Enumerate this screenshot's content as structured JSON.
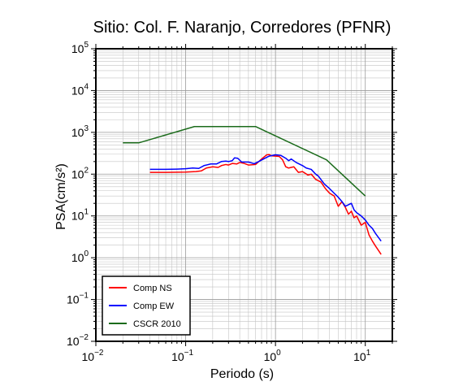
{
  "chart_data": {
    "type": "line",
    "title": "Sitio: Col. F. Naranjo, Corredores (PFNR)",
    "xlabel": "Periodo (s)",
    "ylabel": "PSA(cm/s²)",
    "xscale": "log",
    "yscale": "log",
    "xlim": [
      0.01,
      20
    ],
    "ylim": [
      0.01,
      100000
    ],
    "grid": true,
    "legend_position": "bottom-left",
    "x_tick_labels": [
      {
        "value": 0.01,
        "base": "10",
        "exp": "−2"
      },
      {
        "value": 0.1,
        "base": "10",
        "exp": "−1"
      },
      {
        "value": 1,
        "base": "10",
        "exp": "0"
      },
      {
        "value": 10,
        "base": "10",
        "exp": "1"
      }
    ],
    "y_tick_labels": [
      {
        "value": 0.01,
        "base": "10",
        "exp": "−2"
      },
      {
        "value": 0.1,
        "base": "10",
        "exp": "−1"
      },
      {
        "value": 1,
        "base": "10",
        "exp": "0"
      },
      {
        "value": 10,
        "base": "10",
        "exp": "1"
      },
      {
        "value": 100,
        "base": "10",
        "exp": "2"
      },
      {
        "value": 1000,
        "base": "10",
        "exp": "3"
      },
      {
        "value": 10000,
        "base": "10",
        "exp": "4"
      },
      {
        "value": 100000,
        "base": "10",
        "exp": "5"
      }
    ],
    "series": [
      {
        "name": "Comp NS",
        "color": "#ff0000",
        "points": [
          [
            0.04,
            110
          ],
          [
            0.06,
            110
          ],
          [
            0.1,
            112
          ],
          [
            0.13,
            115
          ],
          [
            0.15,
            120
          ],
          [
            0.17,
            140
          ],
          [
            0.2,
            150
          ],
          [
            0.23,
            145
          ],
          [
            0.25,
            160
          ],
          [
            0.28,
            170
          ],
          [
            0.3,
            165
          ],
          [
            0.33,
            180
          ],
          [
            0.37,
            175
          ],
          [
            0.4,
            190
          ],
          [
            0.45,
            180
          ],
          [
            0.5,
            165
          ],
          [
            0.6,
            170
          ],
          [
            0.7,
            230
          ],
          [
            0.8,
            290
          ],
          [
            0.85,
            295
          ],
          [
            0.9,
            275
          ],
          [
            1.0,
            270
          ],
          [
            1.1,
            265
          ],
          [
            1.2,
            220
          ],
          [
            1.3,
            150
          ],
          [
            1.4,
            140
          ],
          [
            1.6,
            150
          ],
          [
            1.8,
            110
          ],
          [
            2.0,
            115
          ],
          [
            2.3,
            95
          ],
          [
            2.5,
            100
          ],
          [
            2.8,
            75
          ],
          [
            3.2,
            65
          ],
          [
            3.6,
            45
          ],
          [
            4.0,
            35
          ],
          [
            4.5,
            30
          ],
          [
            5.0,
            17
          ],
          [
            5.5,
            22
          ],
          [
            6.0,
            16
          ],
          [
            6.5,
            11
          ],
          [
            7.0,
            13
          ],
          [
            7.5,
            9
          ],
          [
            8.0,
            10
          ],
          [
            9.0,
            6
          ],
          [
            10,
            7
          ],
          [
            11,
            3.5
          ],
          [
            12,
            2.5
          ],
          [
            13,
            1.9
          ],
          [
            14,
            1.5
          ],
          [
            15,
            1.2
          ]
        ]
      },
      {
        "name": "Comp EW",
        "color": "#0000ff",
        "points": [
          [
            0.04,
            130
          ],
          [
            0.06,
            130
          ],
          [
            0.08,
            132
          ],
          [
            0.1,
            135
          ],
          [
            0.12,
            140
          ],
          [
            0.14,
            137
          ],
          [
            0.16,
            160
          ],
          [
            0.19,
            175
          ],
          [
            0.22,
            175
          ],
          [
            0.25,
            200
          ],
          [
            0.28,
            205
          ],
          [
            0.3,
            200
          ],
          [
            0.33,
            210
          ],
          [
            0.35,
            245
          ],
          [
            0.38,
            240
          ],
          [
            0.42,
            195
          ],
          [
            0.5,
            195
          ],
          [
            0.58,
            178
          ],
          [
            0.65,
            200
          ],
          [
            0.75,
            235
          ],
          [
            0.85,
            270
          ],
          [
            1.0,
            290
          ],
          [
            1.15,
            280
          ],
          [
            1.3,
            240
          ],
          [
            1.4,
            210
          ],
          [
            1.5,
            230
          ],
          [
            1.7,
            190
          ],
          [
            2.0,
            160
          ],
          [
            2.2,
            140
          ],
          [
            2.5,
            130
          ],
          [
            2.8,
            100
          ],
          [
            3.0,
            90
          ],
          [
            3.5,
            58
          ],
          [
            4.0,
            45
          ],
          [
            4.5,
            35
          ],
          [
            5.0,
            28
          ],
          [
            5.5,
            22
          ],
          [
            6.0,
            17
          ],
          [
            7.0,
            20
          ],
          [
            7.5,
            14
          ],
          [
            8.0,
            12
          ],
          [
            9.0,
            10
          ],
          [
            10,
            8
          ],
          [
            11,
            6
          ],
          [
            12,
            5
          ],
          [
            13,
            3.8
          ],
          [
            15,
            2.5
          ]
        ]
      },
      {
        "name": "CSCR 2010",
        "color": "#1b6b1b",
        "points": [
          [
            0.02,
            560
          ],
          [
            0.03,
            560
          ],
          [
            0.125,
            1375
          ],
          [
            0.6,
            1375
          ],
          [
            3.7,
            220
          ],
          [
            10,
            30
          ]
        ]
      }
    ]
  }
}
